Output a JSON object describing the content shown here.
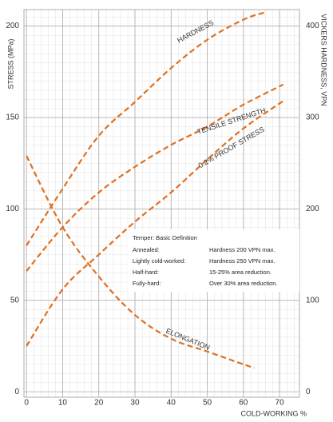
{
  "chart_data": {
    "type": "line",
    "y_label": "STRESS (MPa)",
    "y2_label": "VICKERS HARDNESS, VPN",
    "x_label": "COLD-WORKING %",
    "xlim": [
      -0.7,
      75.5
    ],
    "xticks": [
      0,
      10,
      20,
      30,
      40,
      50,
      60,
      70
    ],
    "ylim": [
      -3,
      209
    ],
    "yticks": [
      0,
      50,
      100,
      150,
      200
    ],
    "y2lim": [
      -6,
      418
    ],
    "y2ticks": [
      0,
      100,
      200,
      300,
      400
    ],
    "grid": true,
    "series": [
      {
        "name": "HARDNESS",
        "color": "#e07020",
        "axis": "y2",
        "x": [
          0,
          10,
          20,
          30,
          40,
          50,
          60,
          66
        ],
        "values": [
          160,
          222,
          280,
          317,
          354,
          385,
          407,
          415
        ]
      },
      {
        "name": "TENSILE STRENGTH",
        "color": "#e07020",
        "x": [
          0,
          10,
          20,
          30,
          40,
          50,
          60,
          71
        ],
        "values": [
          66,
          90,
          109,
          123,
          135,
          145,
          157,
          168
        ]
      },
      {
        "name": "0.2% PROOF STRESS",
        "color": "#e07020",
        "x": [
          0,
          10,
          20,
          30,
          40,
          50,
          60,
          71
        ],
        "values": [
          25,
          56,
          75,
          93,
          109,
          127,
          144,
          159
        ]
      },
      {
        "name": "ELONGATION",
        "color": "#e07020",
        "x": [
          0,
          10,
          20,
          30,
          40,
          50,
          60,
          63
        ],
        "values": [
          129,
          90,
          63,
          42,
          29,
          22,
          15,
          13
        ]
      }
    ],
    "table": {
      "title": "Temper: Basic Definition",
      "rows": [
        [
          "Annealed:",
          "Hardness 200 VPN max."
        ],
        [
          "Lightly cold-worked:",
          "Hardness 250 VPN max."
        ],
        [
          "Half-hard:",
          "15-25% area reduction."
        ],
        [
          "Fully-hard:",
          "Over 30% area reduction."
        ]
      ]
    }
  }
}
